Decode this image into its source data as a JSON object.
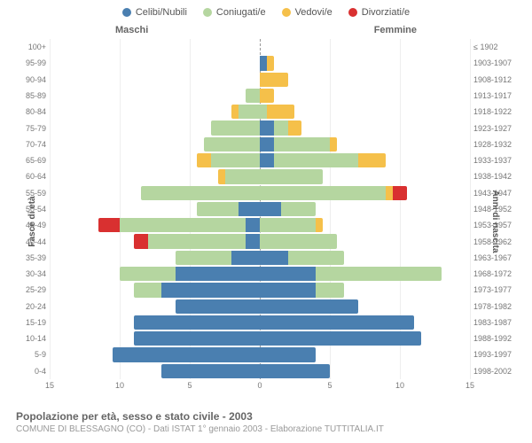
{
  "legend": [
    {
      "label": "Celibi/Nubili",
      "color": "#4a7fb0"
    },
    {
      "label": "Coniugati/e",
      "color": "#b5d6a0"
    },
    {
      "label": "Vedovi/e",
      "color": "#f5c04a"
    },
    {
      "label": "Divorziati/e",
      "color": "#d93030"
    }
  ],
  "headers": {
    "m": "Maschi",
    "f": "Femmine"
  },
  "axis_labels": {
    "left": "Fasce di età",
    "right": "Anni di nascita"
  },
  "xmax": 15,
  "xticks": [
    15,
    10,
    5,
    0,
    5,
    10,
    15
  ],
  "colors": {
    "celibi": "#4a7fb0",
    "coniugati": "#b5d6a0",
    "vedovi": "#f5c04a",
    "divorziati": "#d93030",
    "grid": "#eeeeee",
    "center": "#999999"
  },
  "footer": {
    "title": "Popolazione per età, sesso e stato civile - 2003",
    "sub": "COMUNE DI BLESSAGNO (CO) - Dati ISTAT 1° gennaio 2003 - Elaborazione TUTTITALIA.IT"
  },
  "rows": [
    {
      "age": "100+",
      "birth": "≤ 1902",
      "m": [
        0,
        0,
        0,
        0
      ],
      "f": [
        0,
        0,
        0,
        0
      ]
    },
    {
      "age": "95-99",
      "birth": "1903-1907",
      "m": [
        0,
        0,
        0,
        0
      ],
      "f": [
        0.5,
        0,
        0.5,
        0
      ]
    },
    {
      "age": "90-94",
      "birth": "1908-1912",
      "m": [
        0,
        0,
        0,
        0
      ],
      "f": [
        0,
        0,
        2,
        0
      ]
    },
    {
      "age": "85-89",
      "birth": "1913-1917",
      "m": [
        0,
        1,
        0,
        0
      ],
      "f": [
        0,
        0,
        1,
        0
      ]
    },
    {
      "age": "80-84",
      "birth": "1918-1922",
      "m": [
        0,
        1.5,
        0.5,
        0
      ],
      "f": [
        0,
        0.5,
        2,
        0
      ]
    },
    {
      "age": "75-79",
      "birth": "1923-1927",
      "m": [
        0,
        3.5,
        0,
        0
      ],
      "f": [
        1,
        1,
        1,
        0
      ]
    },
    {
      "age": "70-74",
      "birth": "1928-1932",
      "m": [
        0,
        4,
        0,
        0
      ],
      "f": [
        1,
        4,
        0.5,
        0
      ]
    },
    {
      "age": "65-69",
      "birth": "1933-1937",
      "m": [
        0,
        3.5,
        1,
        0
      ],
      "f": [
        1,
        6,
        2,
        0
      ]
    },
    {
      "age": "60-64",
      "birth": "1938-1942",
      "m": [
        0,
        2.5,
        0.5,
        0
      ],
      "f": [
        0,
        4.5,
        0,
        0
      ]
    },
    {
      "age": "55-59",
      "birth": "1943-1947",
      "m": [
        0,
        8.5,
        0,
        0
      ],
      "f": [
        0,
        9,
        0.5,
        1
      ]
    },
    {
      "age": "50-54",
      "birth": "1948-1952",
      "m": [
        1.5,
        3,
        0,
        0
      ],
      "f": [
        1.5,
        2.5,
        0,
        0
      ]
    },
    {
      "age": "45-49",
      "birth": "1953-1957",
      "m": [
        1,
        9,
        0,
        1.5
      ],
      "f": [
        0,
        4,
        0.5,
        0
      ]
    },
    {
      "age": "40-44",
      "birth": "1958-1962",
      "m": [
        1,
        7,
        0,
        1
      ],
      "f": [
        0,
        5.5,
        0,
        0
      ]
    },
    {
      "age": "35-39",
      "birth": "1963-1967",
      "m": [
        2,
        4,
        0,
        0
      ],
      "f": [
        2,
        4,
        0,
        0
      ]
    },
    {
      "age": "30-34",
      "birth": "1968-1972",
      "m": [
        6,
        4,
        0,
        0
      ],
      "f": [
        4,
        9,
        0,
        0
      ]
    },
    {
      "age": "25-29",
      "birth": "1973-1977",
      "m": [
        7,
        2,
        0,
        0
      ],
      "f": [
        4,
        2,
        0,
        0
      ]
    },
    {
      "age": "20-24",
      "birth": "1978-1982",
      "m": [
        6,
        0,
        0,
        0
      ],
      "f": [
        7,
        0,
        0,
        0
      ]
    },
    {
      "age": "15-19",
      "birth": "1983-1987",
      "m": [
        9,
        0,
        0,
        0
      ],
      "f": [
        11,
        0,
        0,
        0
      ]
    },
    {
      "age": "10-14",
      "birth": "1988-1992",
      "m": [
        9,
        0,
        0,
        0
      ],
      "f": [
        11.5,
        0,
        0,
        0
      ]
    },
    {
      "age": "5-9",
      "birth": "1993-1997",
      "m": [
        10.5,
        0,
        0,
        0
      ],
      "f": [
        4,
        0,
        0,
        0
      ]
    },
    {
      "age": "0-4",
      "birth": "1998-2002",
      "m": [
        7,
        0,
        0,
        0
      ],
      "f": [
        5,
        0,
        0,
        0
      ]
    }
  ]
}
